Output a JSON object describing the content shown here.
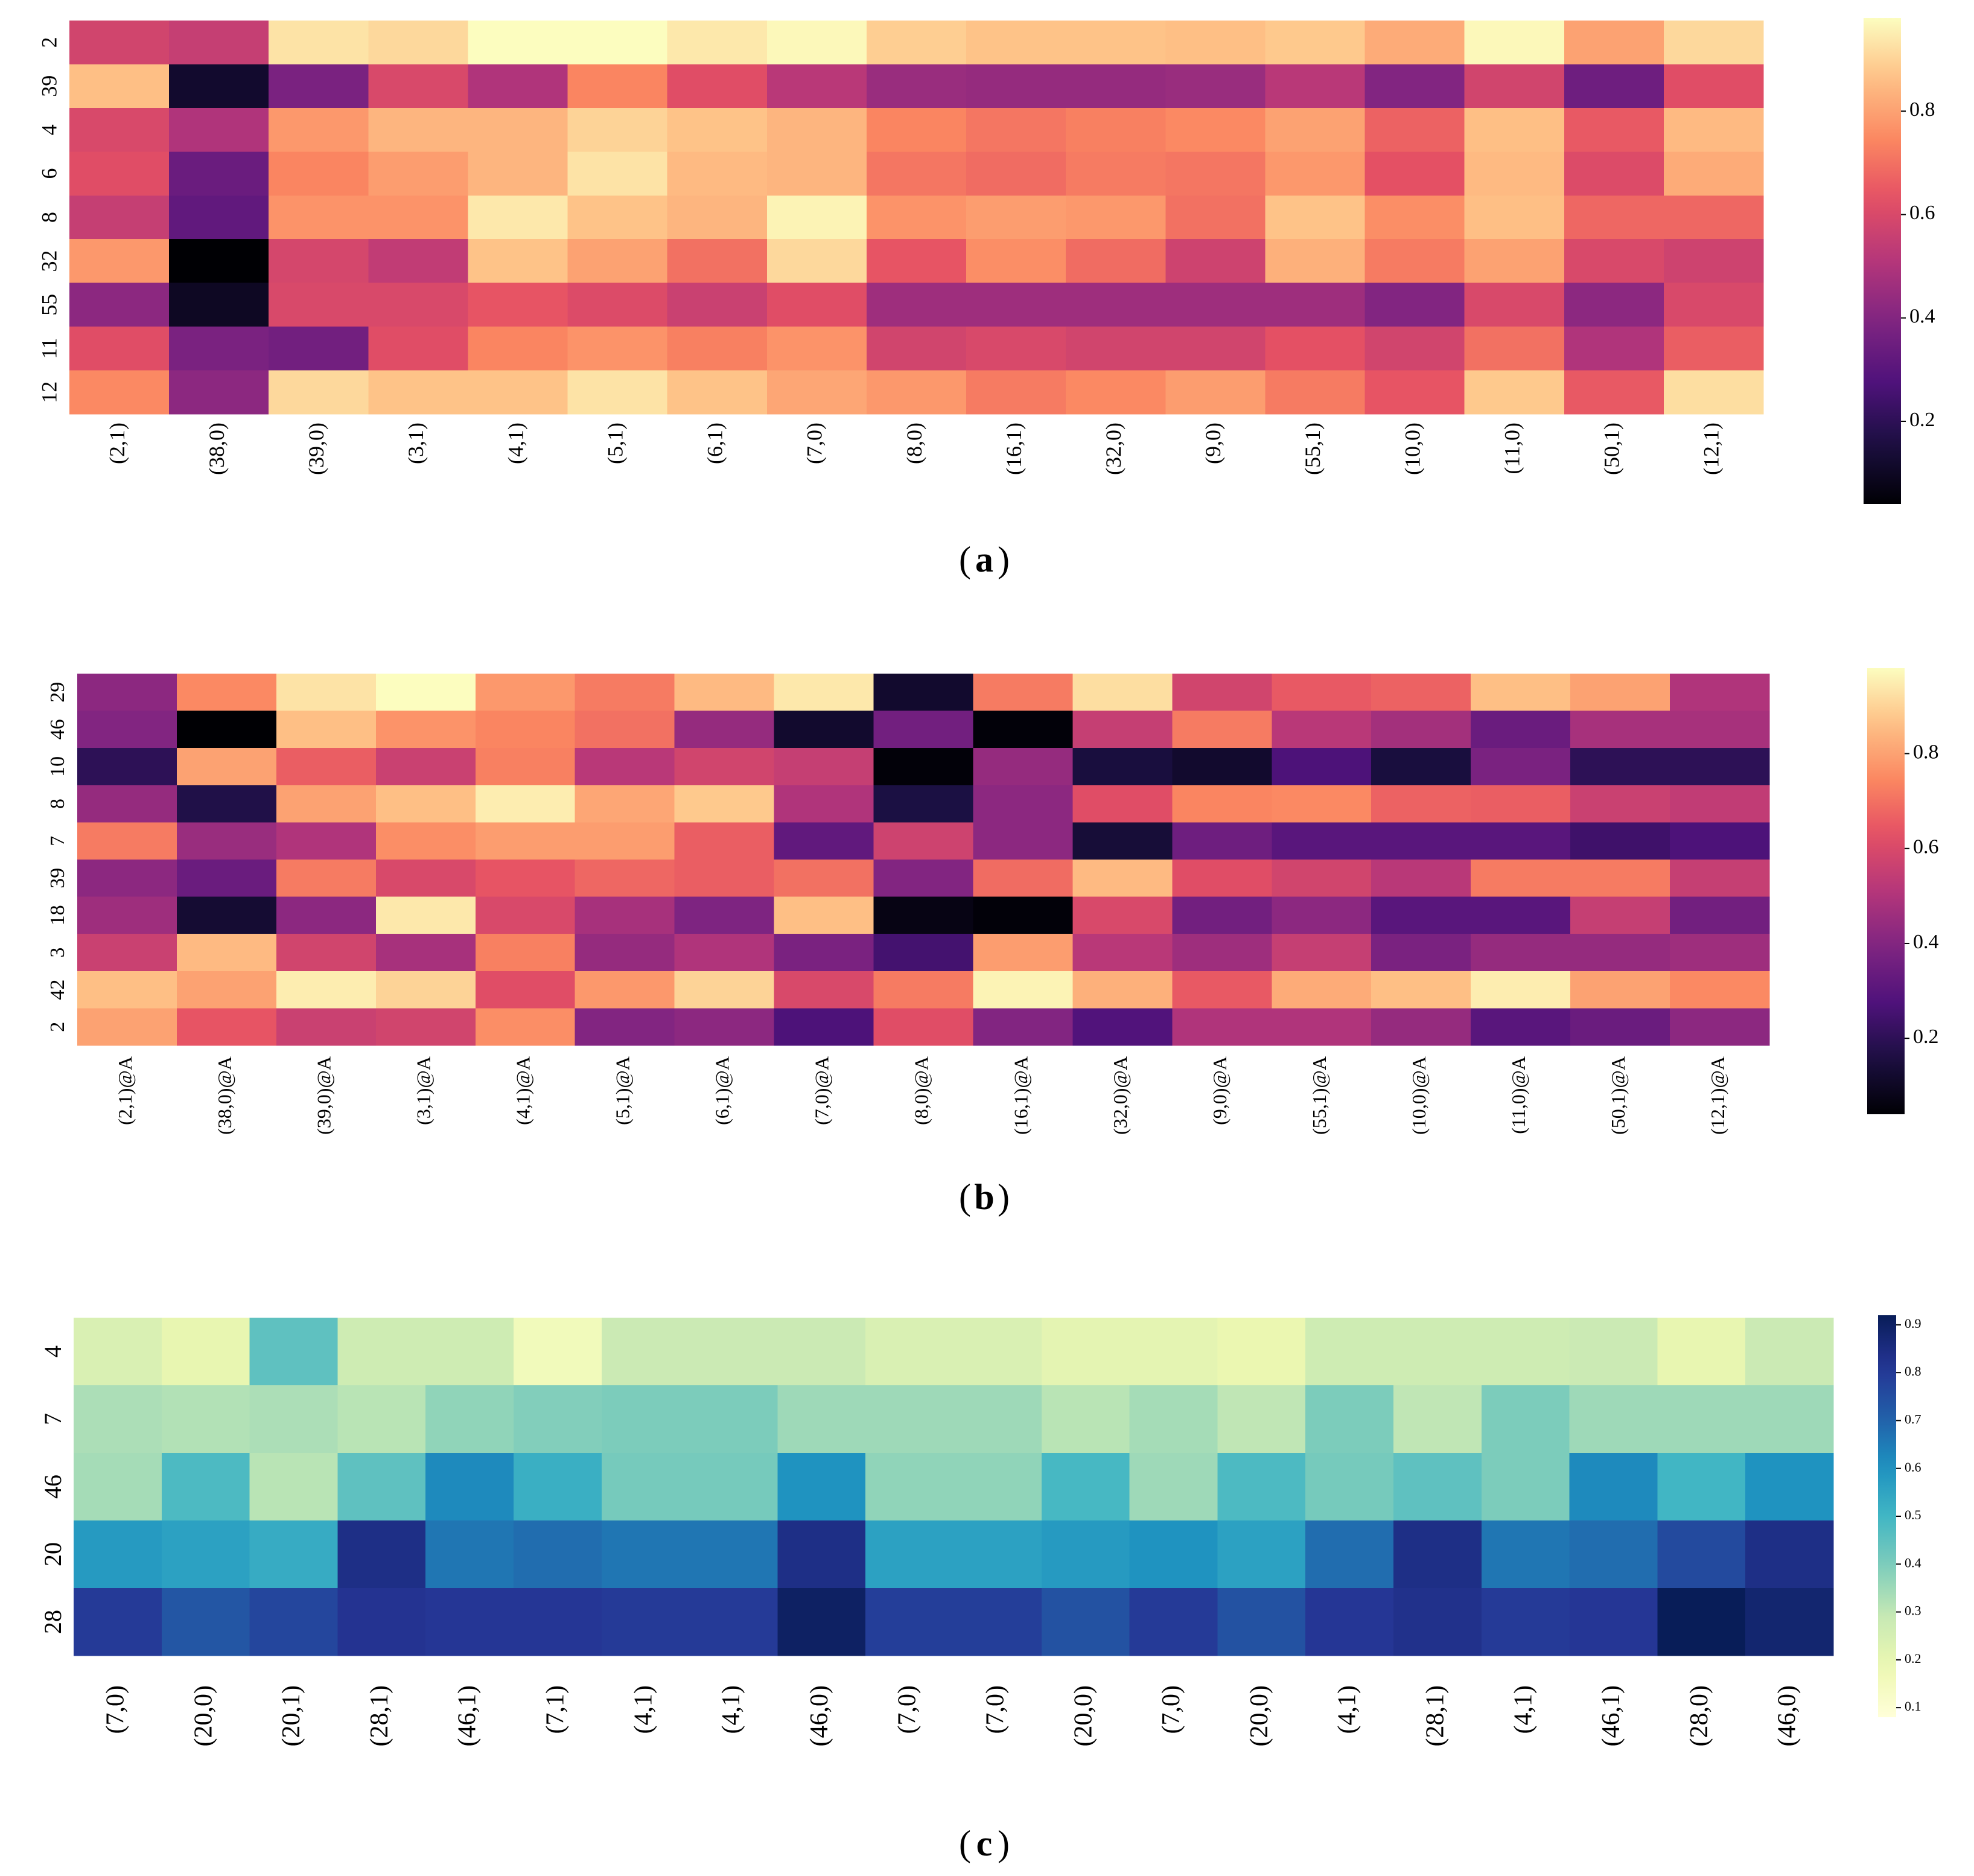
{
  "figure": {
    "panels": [
      {
        "caption_label": "a"
      },
      {
        "caption_label": "b"
      },
      {
        "caption_label": "c"
      }
    ]
  },
  "chart_data": [
    {
      "type": "heatmap",
      "title": "",
      "colormap": "magma",
      "vmin": 0.04,
      "vmax": 0.98,
      "colorbar_ticks": [
        "0.2",
        "0.4",
        "0.6",
        "0.8"
      ],
      "colorbar_tick_values": [
        0.2,
        0.4,
        0.6,
        0.8
      ],
      "rows": [
        "2",
        "39",
        "4",
        "6",
        "8",
        "32",
        "55",
        "11",
        "12"
      ],
      "columns": [
        "(2,1)",
        "(38,0)",
        "(39,0)",
        "(3,1)",
        "(4,1)",
        "(5,1)",
        "(6,1)",
        "(7,0)",
        "(8,0)",
        "(16,1)",
        "(32,0)",
        "(9,0)",
        "(55,1)",
        "(10,0)",
        "(11,0)",
        "(50,1)",
        "(12,1)"
      ],
      "values": [
        [
          0.58,
          0.55,
          0.93,
          0.91,
          0.98,
          0.98,
          0.94,
          0.97,
          0.89,
          0.87,
          0.87,
          0.86,
          0.88,
          0.82,
          0.97,
          0.8,
          0.91
        ],
        [
          0.86,
          0.12,
          0.38,
          0.6,
          0.5,
          0.74,
          0.62,
          0.52,
          0.45,
          0.44,
          0.44,
          0.45,
          0.52,
          0.4,
          0.58,
          0.35,
          0.62
        ],
        [
          0.6,
          0.5,
          0.78,
          0.84,
          0.84,
          0.9,
          0.87,
          0.84,
          0.74,
          0.71,
          0.73,
          0.75,
          0.8,
          0.67,
          0.86,
          0.65,
          0.85
        ],
        [
          0.62,
          0.34,
          0.74,
          0.79,
          0.84,
          0.93,
          0.85,
          0.84,
          0.71,
          0.69,
          0.72,
          0.71,
          0.78,
          0.63,
          0.85,
          0.61,
          0.82
        ],
        [
          0.55,
          0.32,
          0.77,
          0.77,
          0.94,
          0.87,
          0.84,
          0.96,
          0.77,
          0.79,
          0.78,
          0.7,
          0.87,
          0.76,
          0.86,
          0.68,
          0.68
        ],
        [
          0.78,
          0.04,
          0.59,
          0.54,
          0.87,
          0.8,
          0.7,
          0.91,
          0.64,
          0.76,
          0.69,
          0.57,
          0.83,
          0.72,
          0.8,
          0.6,
          0.57
        ],
        [
          0.42,
          0.1,
          0.6,
          0.6,
          0.64,
          0.61,
          0.56,
          0.62,
          0.46,
          0.46,
          0.46,
          0.46,
          0.46,
          0.4,
          0.6,
          0.42,
          0.6
        ],
        [
          0.62,
          0.38,
          0.36,
          0.62,
          0.74,
          0.77,
          0.73,
          0.77,
          0.58,
          0.6,
          0.58,
          0.58,
          0.63,
          0.58,
          0.7,
          0.5,
          0.66
        ],
        [
          0.75,
          0.42,
          0.91,
          0.87,
          0.87,
          0.93,
          0.87,
          0.81,
          0.78,
          0.72,
          0.75,
          0.79,
          0.72,
          0.64,
          0.88,
          0.65,
          0.92
        ]
      ]
    },
    {
      "type": "heatmap",
      "title": "",
      "colormap": "magma",
      "vmin": 0.04,
      "vmax": 0.98,
      "colorbar_ticks": [
        "0.2",
        "0.4",
        "0.6",
        "0.8"
      ],
      "colorbar_tick_values": [
        0.2,
        0.4,
        0.6,
        0.8
      ],
      "rows": [
        "29",
        "46",
        "10",
        "8",
        "7",
        "39",
        "18",
        "3",
        "42",
        "2"
      ],
      "columns": [
        "(2,1)@A",
        "(38,0)@A",
        "(39,0)@A",
        "(3,1)@A",
        "(4,1)@A",
        "(5,1)@A",
        "(6,1)@A",
        "(7,0)@A",
        "(8,0)@A",
        "(16,1)@A",
        "(32,0)@A",
        "(9,0)@A",
        "(55,1)@A",
        "(10,0)@A",
        "(11,0)@A",
        "(50,1)@A",
        "(12,1)@A"
      ],
      "values": [
        [
          0.42,
          0.75,
          0.93,
          0.98,
          0.78,
          0.72,
          0.85,
          0.94,
          0.12,
          0.72,
          0.92,
          0.58,
          0.65,
          0.67,
          0.86,
          0.8,
          0.5
        ],
        [
          0.4,
          0.04,
          0.86,
          0.77,
          0.74,
          0.7,
          0.44,
          0.12,
          0.36,
          0.05,
          0.55,
          0.72,
          0.52,
          0.47,
          0.34,
          0.48,
          0.48
        ],
        [
          0.2,
          0.8,
          0.66,
          0.56,
          0.73,
          0.52,
          0.58,
          0.55,
          0.05,
          0.44,
          0.15,
          0.12,
          0.27,
          0.15,
          0.38,
          0.2,
          0.2
        ],
        [
          0.44,
          0.17,
          0.8,
          0.86,
          0.95,
          0.81,
          0.88,
          0.5,
          0.16,
          0.42,
          0.62,
          0.74,
          0.75,
          0.67,
          0.66,
          0.56,
          0.54
        ],
        [
          0.72,
          0.45,
          0.5,
          0.76,
          0.79,
          0.79,
          0.66,
          0.32,
          0.57,
          0.42,
          0.14,
          0.35,
          0.3,
          0.3,
          0.3,
          0.24,
          0.27
        ],
        [
          0.42,
          0.34,
          0.72,
          0.6,
          0.64,
          0.68,
          0.66,
          0.7,
          0.4,
          0.69,
          0.85,
          0.62,
          0.58,
          0.52,
          0.72,
          0.72,
          0.55
        ],
        [
          0.46,
          0.13,
          0.42,
          0.94,
          0.6,
          0.48,
          0.39,
          0.86,
          0.07,
          0.05,
          0.6,
          0.36,
          0.42,
          0.3,
          0.3,
          0.55,
          0.36
        ],
        [
          0.56,
          0.85,
          0.58,
          0.48,
          0.73,
          0.44,
          0.5,
          0.38,
          0.25,
          0.79,
          0.52,
          0.46,
          0.55,
          0.38,
          0.44,
          0.44,
          0.46
        ],
        [
          0.86,
          0.8,
          0.95,
          0.9,
          0.62,
          0.78,
          0.9,
          0.6,
          0.72,
          0.96,
          0.83,
          0.65,
          0.82,
          0.86,
          0.95,
          0.8,
          0.75
        ],
        [
          0.8,
          0.64,
          0.56,
          0.58,
          0.76,
          0.4,
          0.42,
          0.27,
          0.62,
          0.4,
          0.28,
          0.5,
          0.5,
          0.44,
          0.3,
          0.34,
          0.42
        ]
      ]
    },
    {
      "type": "heatmap",
      "title": "",
      "colormap": "YlGnBu",
      "vmin": 0.08,
      "vmax": 0.92,
      "colorbar_ticks": [
        "0.1",
        "0.2",
        "0.3",
        "0.4",
        "0.5",
        "0.6",
        "0.7",
        "0.8",
        "0.9"
      ],
      "colorbar_tick_values": [
        0.1,
        0.2,
        0.3,
        0.4,
        0.5,
        0.6,
        0.7,
        0.8,
        0.9
      ],
      "rows": [
        "4",
        "7",
        "46",
        "20",
        "28"
      ],
      "columns": [
        "(7,0)",
        "(20,0)",
        "(20,1)",
        "(28,1)",
        "(46,1)",
        "(7,1)",
        "(4,1)",
        "(4,1)",
        "(46,0)",
        "(7,0)",
        "(7,0)",
        "(20,0)",
        "(7,0)",
        "(20,0)",
        "(4,1)",
        "(28,1)",
        "(4,1)",
        "(46,1)",
        "(28,0)",
        "(46,0)"
      ],
      "values": [
        [
          0.24,
          0.2,
          0.45,
          0.27,
          0.27,
          0.16,
          0.28,
          0.28,
          0.28,
          0.24,
          0.24,
          0.21,
          0.21,
          0.19,
          0.27,
          0.27,
          0.27,
          0.28,
          0.2,
          0.28
        ],
        [
          0.33,
          0.32,
          0.33,
          0.31,
          0.37,
          0.39,
          0.4,
          0.4,
          0.35,
          0.35,
          0.35,
          0.31,
          0.34,
          0.3,
          0.4,
          0.3,
          0.4,
          0.35,
          0.35,
          0.35
        ],
        [
          0.34,
          0.48,
          0.31,
          0.45,
          0.62,
          0.52,
          0.41,
          0.41,
          0.6,
          0.37,
          0.37,
          0.49,
          0.35,
          0.48,
          0.41,
          0.45,
          0.4,
          0.62,
          0.5,
          0.6
        ],
        [
          0.58,
          0.56,
          0.53,
          0.84,
          0.66,
          0.68,
          0.66,
          0.66,
          0.84,
          0.56,
          0.56,
          0.58,
          0.6,
          0.56,
          0.68,
          0.84,
          0.66,
          0.68,
          0.76,
          0.84
        ],
        [
          0.8,
          0.73,
          0.77,
          0.82,
          0.81,
          0.81,
          0.8,
          0.8,
          0.9,
          0.79,
          0.79,
          0.74,
          0.8,
          0.74,
          0.81,
          0.83,
          0.8,
          0.81,
          0.92,
          0.88
        ]
      ]
    }
  ]
}
